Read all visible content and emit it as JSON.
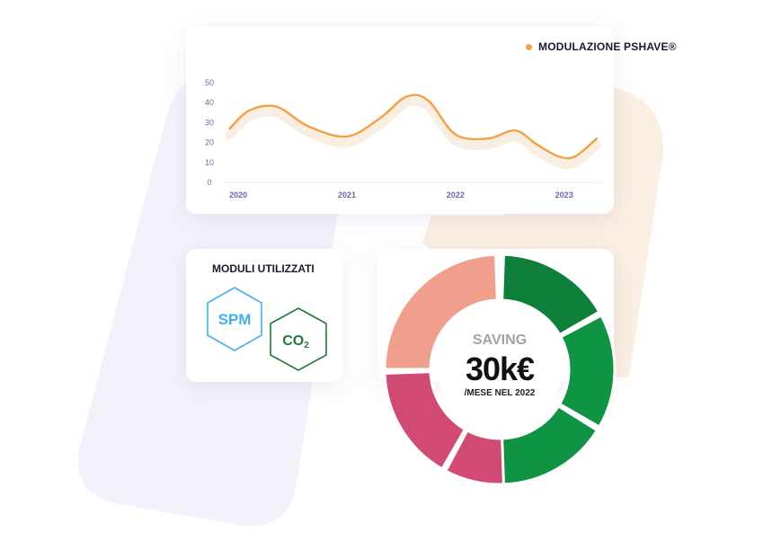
{
  "chart": {
    "legend_label": "MODULAZIONE PSHAVE®",
    "line_color": "#f59f43",
    "y_ticks": [
      "0",
      "10",
      "20",
      "30",
      "40",
      "50"
    ],
    "x_ticks": [
      "2020",
      "2021",
      "2022",
      "2023"
    ]
  },
  "chart_data": {
    "type": "line",
    "title": "",
    "series": [
      {
        "name": "MODULAZIONE PSHAVE®",
        "color": "#f59f43",
        "x": [
          2019.92,
          2020.1,
          2020.35,
          2020.65,
          2021.0,
          2021.3,
          2021.55,
          2021.75,
          2022.0,
          2022.3,
          2022.55,
          2022.75,
          2022.95,
          2023.1,
          2023.3
        ],
        "values": [
          27,
          36,
          38,
          28,
          23,
          32,
          43,
          41,
          24,
          22,
          26,
          19,
          13,
          13,
          22
        ]
      }
    ],
    "ylim": [
      0,
      50
    ],
    "xlim": [
      2019.9,
      2023.35
    ],
    "x_ticks": [
      2020,
      2021,
      2022,
      2023
    ],
    "grid": false
  },
  "modules": {
    "title": "MODULI UTILIZZATI",
    "spm_label": "SPM",
    "co2_main": "CO",
    "co2_sub": "2",
    "spm_color": "#3eb2f0",
    "co2_color": "#1f7a3a"
  },
  "saving": {
    "label": "SAVING",
    "value": "30k€",
    "sub": "/MESE NEL 2022",
    "segment_colors": [
      "#ef9f8c",
      "#d04a74",
      "#d04a74",
      "#0d7f3a",
      "#0e9443",
      "#0e9443"
    ]
  }
}
